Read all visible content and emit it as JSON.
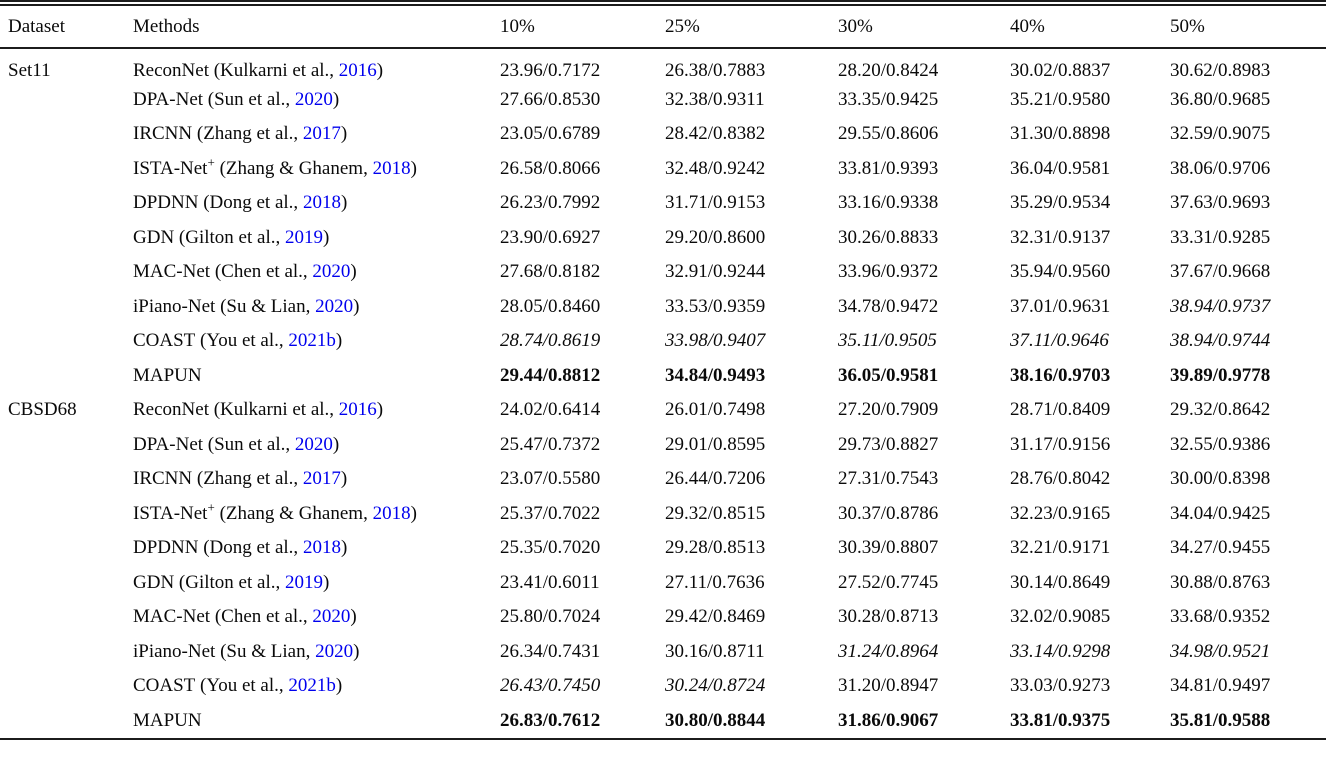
{
  "page": {
    "background_color": "#ffffff",
    "text_color": "#0a0a0a",
    "link_color": "#0000ee"
  },
  "table": {
    "headers": [
      "Dataset",
      "Methods",
      "10%",
      "25%",
      "30%",
      "40%",
      "50%"
    ],
    "sections": [
      {
        "dataset": "Set11",
        "rows": [
          {
            "method": "ReconNet",
            "sup": "",
            "cite": "Kulkarni et al.,",
            "year": "2016",
            "values": [
              "23.96/0.7172",
              "26.38/0.7883",
              "28.20/0.8424",
              "30.02/0.8837",
              "30.62/0.8983"
            ],
            "styles": [
              "n",
              "n",
              "n",
              "n",
              "n"
            ]
          },
          {
            "method": "DPA-Net",
            "sup": "",
            "cite": "Sun et al.,",
            "year": "2020",
            "values": [
              "27.66/0.8530",
              "32.38/0.9311",
              "33.35/0.9425",
              "35.21/0.9580",
              "36.80/0.9685"
            ],
            "styles": [
              "n",
              "n",
              "n",
              "n",
              "n"
            ]
          },
          {
            "method": "IRCNN",
            "sup": "",
            "cite": "Zhang et al.,",
            "year": "2017",
            "values": [
              "23.05/0.6789",
              "28.42/0.8382",
              "29.55/0.8606",
              "31.30/0.8898",
              "32.59/0.9075"
            ],
            "styles": [
              "n",
              "n",
              "n",
              "n",
              "n"
            ]
          },
          {
            "method": "ISTA-Net",
            "sup": "+",
            "cite": "Zhang & Ghanem,",
            "year": "2018",
            "values": [
              "26.58/0.8066",
              "32.48/0.9242",
              "33.81/0.9393",
              "36.04/0.9581",
              "38.06/0.9706"
            ],
            "styles": [
              "n",
              "n",
              "n",
              "n",
              "n"
            ]
          },
          {
            "method": "DPDNN",
            "sup": "",
            "cite": "Dong et al.,",
            "year": "2018",
            "values": [
              "26.23/0.7992",
              "31.71/0.9153",
              "33.16/0.9338",
              "35.29/0.9534",
              "37.63/0.9693"
            ],
            "styles": [
              "n",
              "n",
              "n",
              "n",
              "n"
            ]
          },
          {
            "method": "GDN",
            "sup": "",
            "cite": "Gilton et al.,",
            "year": "2019",
            "values": [
              "23.90/0.6927",
              "29.20/0.8600",
              "30.26/0.8833",
              "32.31/0.9137",
              "33.31/0.9285"
            ],
            "styles": [
              "n",
              "n",
              "n",
              "n",
              "n"
            ]
          },
          {
            "method": "MAC-Net",
            "sup": "",
            "cite": "Chen et al.,",
            "year": "2020",
            "values": [
              "27.68/0.8182",
              "32.91/0.9244",
              "33.96/0.9372",
              "35.94/0.9560",
              "37.67/0.9668"
            ],
            "styles": [
              "n",
              "n",
              "n",
              "n",
              "n"
            ]
          },
          {
            "method": "iPiano-Net",
            "sup": "",
            "cite": "Su & Lian,",
            "year": "2020",
            "values": [
              "28.05/0.8460",
              "33.53/0.9359",
              "34.78/0.9472",
              "37.01/0.9631",
              "38.94/0.9737"
            ],
            "styles": [
              "n",
              "n",
              "n",
              "n",
              "i"
            ]
          },
          {
            "method": "COAST",
            "sup": "",
            "cite": "You et al.,",
            "year": "2021b",
            "values": [
              "28.74/0.8619",
              "33.98/0.9407",
              "35.11/0.9505",
              "37.11/0.9646",
              "38.94/0.9744"
            ],
            "styles": [
              "i",
              "i",
              "i",
              "i",
              "i"
            ]
          },
          {
            "method": "MAPUN",
            "sup": "",
            "cite": "",
            "year": "",
            "values": [
              "29.44/0.8812",
              "34.84/0.9493",
              "36.05/0.9581",
              "38.16/0.9703",
              "39.89/0.9778"
            ],
            "styles": [
              "b",
              "b",
              "b",
              "b",
              "b"
            ]
          }
        ]
      },
      {
        "dataset": "CBSD68",
        "rows": [
          {
            "method": "ReconNet",
            "sup": "",
            "cite": "Kulkarni et al.,",
            "year": "2016",
            "values": [
              "24.02/0.6414",
              "26.01/0.7498",
              "27.20/0.7909",
              "28.71/0.8409",
              "29.32/0.8642"
            ],
            "styles": [
              "n",
              "n",
              "n",
              "n",
              "n"
            ]
          },
          {
            "method": "DPA-Net",
            "sup": "",
            "cite": "Sun et al.,",
            "year": "2020",
            "values": [
              "25.47/0.7372",
              "29.01/0.8595",
              "29.73/0.8827",
              "31.17/0.9156",
              "32.55/0.9386"
            ],
            "styles": [
              "n",
              "n",
              "n",
              "n",
              "n"
            ]
          },
          {
            "method": "IRCNN",
            "sup": "",
            "cite": "Zhang et al.,",
            "year": "2017",
            "values": [
              "23.07/0.5580",
              "26.44/0.7206",
              "27.31/0.7543",
              "28.76/0.8042",
              "30.00/0.8398"
            ],
            "styles": [
              "n",
              "n",
              "n",
              "n",
              "n"
            ]
          },
          {
            "method": "ISTA-Net",
            "sup": "+",
            "cite": "Zhang & Ghanem,",
            "year": "2018",
            "values": [
              "25.37/0.7022",
              "29.32/0.8515",
              "30.37/0.8786",
              "32.23/0.9165",
              "34.04/0.9425"
            ],
            "styles": [
              "n",
              "n",
              "n",
              "n",
              "n"
            ]
          },
          {
            "method": "DPDNN",
            "sup": "",
            "cite": "Dong et al.,",
            "year": "2018",
            "values": [
              "25.35/0.7020",
              "29.28/0.8513",
              "30.39/0.8807",
              "32.21/0.9171",
              "34.27/0.9455"
            ],
            "styles": [
              "n",
              "n",
              "n",
              "n",
              "n"
            ]
          },
          {
            "method": "GDN",
            "sup": "",
            "cite": "Gilton et al.,",
            "year": "2019",
            "values": [
              "23.41/0.6011",
              "27.11/0.7636",
              "27.52/0.7745",
              "30.14/0.8649",
              "30.88/0.8763"
            ],
            "styles": [
              "n",
              "n",
              "n",
              "n",
              "n"
            ]
          },
          {
            "method": "MAC-Net",
            "sup": "",
            "cite": "Chen et al.,",
            "year": "2020",
            "values": [
              "25.80/0.7024",
              "29.42/0.8469",
              "30.28/0.8713",
              "32.02/0.9085",
              "33.68/0.9352"
            ],
            "styles": [
              "n",
              "n",
              "n",
              "n",
              "n"
            ]
          },
          {
            "method": "iPiano-Net",
            "sup": "",
            "cite": "Su & Lian,",
            "year": "2020",
            "values": [
              "26.34/0.7431",
              "30.16/0.8711",
              "31.24/0.8964",
              "33.14/0.9298",
              "34.98/0.9521"
            ],
            "styles": [
              "n",
              "n",
              "i",
              "i",
              "i"
            ]
          },
          {
            "method": "COAST",
            "sup": "",
            "cite": "You et al.,",
            "year": "2021b",
            "values": [
              "26.43/0.7450",
              "30.24/0.8724",
              "31.20/0.8947",
              "33.03/0.9273",
              "34.81/0.9497"
            ],
            "styles": [
              "i",
              "i",
              "n",
              "n",
              "n"
            ]
          },
          {
            "method": "MAPUN",
            "sup": "",
            "cite": "",
            "year": "",
            "values": [
              "26.83/0.7612",
              "30.80/0.8844",
              "31.86/0.9067",
              "33.81/0.9375",
              "35.81/0.9588"
            ],
            "styles": [
              "b",
              "b",
              "b",
              "b",
              "b"
            ]
          }
        ]
      }
    ]
  }
}
